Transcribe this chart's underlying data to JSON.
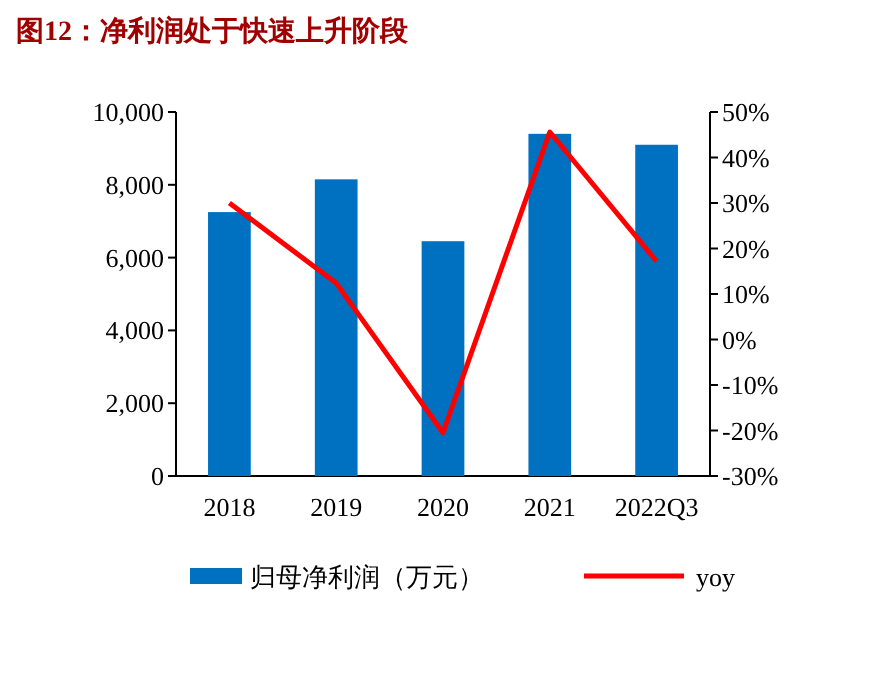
{
  "chart_data": {
    "type": "bar",
    "title": "图12：净利润处于快速上升阶段",
    "categories": [
      "2018",
      "2019",
      "2020",
      "2021",
      "2022Q3"
    ],
    "series": [
      {
        "name": "归母净利润（万元）",
        "color": "#0070c0",
        "values": [
          7250,
          8150,
          6450,
          9400,
          9100
        ]
      },
      {
        "name": "yoy",
        "type": "line",
        "axis": "y2",
        "color": "#ff0000",
        "values": [
          30,
          12.4,
          -20.5,
          45.6,
          17.2
        ]
      }
    ],
    "ylim": [
      0,
      10000
    ],
    "yticks": [
      {
        "value": 0,
        "label": "0"
      },
      {
        "value": 2000,
        "label": "2,000"
      },
      {
        "value": 4000,
        "label": "4,000"
      },
      {
        "value": 6000,
        "label": "6,000"
      },
      {
        "value": 8000,
        "label": "8,000"
      },
      {
        "value": 10000,
        "label": "10,000"
      }
    ],
    "y2lim": [
      -30,
      50
    ],
    "y2ticks": [
      {
        "value": -30,
        "label": "-30%"
      },
      {
        "value": -20,
        "label": "-20%"
      },
      {
        "value": -10,
        "label": "-10%"
      },
      {
        "value": 0,
        "label": "0%"
      },
      {
        "value": 10,
        "label": "10%"
      },
      {
        "value": 20,
        "label": "20%"
      },
      {
        "value": 30,
        "label": "30%"
      },
      {
        "value": 40,
        "label": "40%"
      },
      {
        "value": 50,
        "label": "50%"
      }
    ],
    "legend": "bottom"
  }
}
